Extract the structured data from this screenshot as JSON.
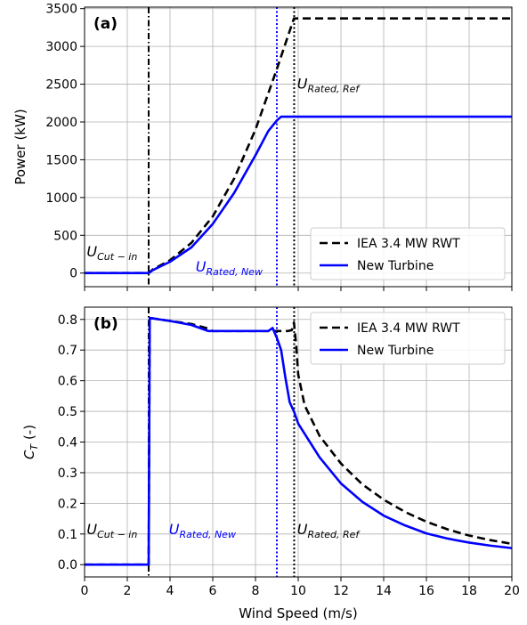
{
  "chart_data": [
    {
      "type": "line",
      "panel_label": "(a)",
      "xlabel": "",
      "ylabel": "Power (kW)",
      "xlim": [
        0,
        20
      ],
      "ylim": [
        -180,
        3520
      ],
      "xticks": [
        0,
        2,
        4,
        6,
        8,
        10,
        12,
        14,
        16,
        18,
        20
      ],
      "yticks": [
        0,
        500,
        1000,
        1500,
        2000,
        2500,
        3000,
        3500
      ],
      "show_xtick_labels": false,
      "grid": true,
      "legend_position": "lower-right",
      "series": [
        {
          "name": "IEA 3.4 MW RWT",
          "color": "#000000",
          "dash": "dashed",
          "x": [
            0,
            3.0,
            3.2,
            4,
            5,
            6,
            7,
            8,
            9,
            9.5,
            9.8,
            9.81,
            20
          ],
          "y": [
            0,
            0,
            50,
            170,
            400,
            750,
            1250,
            1900,
            2700,
            3120,
            3370,
            3370,
            3370
          ]
        },
        {
          "name": "New Turbine",
          "color": "#0000ff",
          "dash": "solid",
          "x": [
            0,
            3.0,
            3.2,
            4,
            5,
            6,
            7,
            8,
            8.6,
            9.0,
            9.2,
            20
          ],
          "y": [
            0,
            0,
            40,
            150,
            340,
            650,
            1060,
            1560,
            1880,
            2020,
            2070,
            2070
          ]
        }
      ],
      "vlines": [
        {
          "x": 3.0,
          "color": "#000000",
          "style": "dashdot"
        },
        {
          "x": 9.0,
          "color": "#0000ff",
          "style": "dotted"
        },
        {
          "x": 9.81,
          "color": "#000000",
          "style": "dotted"
        }
      ],
      "annotations": [
        {
          "main": "U",
          "sub": "Cut − in",
          "color": "#000000",
          "x": 0.1,
          "y": 220
        },
        {
          "main": "U",
          "sub": "Rated, New",
          "color": "#0000ff",
          "x": 5.2,
          "y": 20
        },
        {
          "main": "U",
          "sub": "Rated, Ref",
          "color": "#000000",
          "x": 9.95,
          "y": 2440
        }
      ]
    },
    {
      "type": "line",
      "panel_label": "(b)",
      "xlabel": "Wind Speed (m/s)",
      "ylabel": "C",
      "ylabel_sub": "T",
      "ylabel_suffix": " (-)",
      "xlim": [
        0,
        20
      ],
      "ylim": [
        -0.04,
        0.84
      ],
      "xticks": [
        0,
        2,
        4,
        6,
        8,
        10,
        12,
        14,
        16,
        18,
        20
      ],
      "yticks": [
        0.0,
        0.1,
        0.2,
        0.3,
        0.4,
        0.5,
        0.6,
        0.7,
        0.8
      ],
      "show_xtick_labels": true,
      "grid": true,
      "legend_position": "upper-right",
      "series": [
        {
          "name": "IEA 3.4 MW RWT",
          "color": "#000000",
          "dash": "dashed",
          "x": [
            0,
            3.0,
            3.05,
            3.5,
            4,
            5,
            5.8,
            6,
            7,
            8,
            8.7,
            9,
            9.5,
            9.7,
            9.8,
            9.9,
            10,
            10.3,
            11,
            12,
            13,
            14,
            15,
            16,
            17,
            18,
            19,
            20
          ],
          "y": [
            0,
            0,
            0.805,
            0.8,
            0.795,
            0.785,
            0.77,
            0.762,
            0.762,
            0.762,
            0.762,
            0.762,
            0.762,
            0.765,
            0.79,
            0.72,
            0.62,
            0.52,
            0.42,
            0.33,
            0.262,
            0.212,
            0.172,
            0.14,
            0.115,
            0.095,
            0.08,
            0.068
          ]
        },
        {
          "name": "New Turbine",
          "color": "#0000ff",
          "dash": "solid",
          "x": [
            0,
            3.0,
            3.05,
            3.5,
            4,
            5,
            5.8,
            6,
            7,
            8,
            8.6,
            8.8,
            9.0,
            9.2,
            9.4,
            9.6,
            9.8,
            10,
            11,
            12,
            13,
            14,
            15,
            16,
            17,
            18,
            19,
            20
          ],
          "y": [
            0,
            0,
            0.805,
            0.8,
            0.795,
            0.782,
            0.762,
            0.762,
            0.762,
            0.762,
            0.762,
            0.772,
            0.74,
            0.7,
            0.61,
            0.53,
            0.5,
            0.46,
            0.35,
            0.265,
            0.205,
            0.16,
            0.128,
            0.102,
            0.085,
            0.072,
            0.062,
            0.054
          ]
        }
      ],
      "vlines": [
        {
          "x": 3.0,
          "color": "#000000",
          "style": "dashdot"
        },
        {
          "x": 9.0,
          "color": "#0000ff",
          "style": "dotted"
        },
        {
          "x": 9.81,
          "color": "#000000",
          "style": "dotted"
        }
      ],
      "annotations": [
        {
          "main": "U",
          "sub": "Cut − in",
          "color": "#000000",
          "x": 0.1,
          "y": 0.1
        },
        {
          "main": "U",
          "sub": "Rated, New",
          "color": "#0000ff",
          "x": 3.95,
          "y": 0.1
        },
        {
          "main": "U",
          "sub": "Rated, Ref",
          "color": "#000000",
          "x": 9.95,
          "y": 0.1
        }
      ]
    }
  ]
}
